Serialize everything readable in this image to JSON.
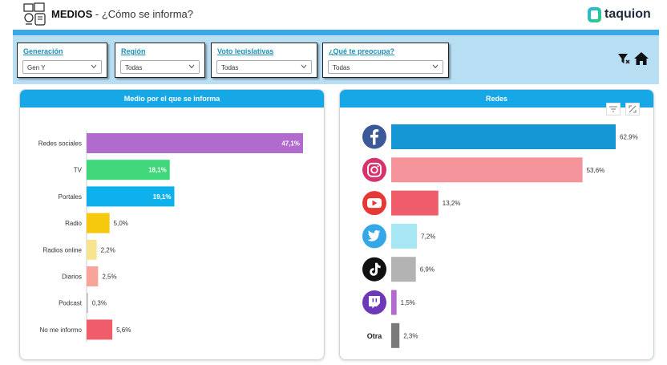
{
  "header": {
    "title_strong": "MEDIOS",
    "title_rest": " - ¿Cómo se informa?",
    "logo_text": "taquion",
    "app_icon": "media-devices-icon"
  },
  "filters": [
    {
      "label": "Generación",
      "value": "Gen Y"
    },
    {
      "label": "Región",
      "value": "Todas"
    },
    {
      "label": "Voto legislativas",
      "value": "Todas"
    },
    {
      "label": "¿Qué te preocupa?",
      "value": "Todas"
    }
  ],
  "toolbar": {
    "icons": [
      "clear-filter-icon",
      "home-icon"
    ]
  },
  "left_chart": {
    "title": "Medio por el que se informa",
    "chart_data": {
      "type": "bar",
      "orientation": "horizontal",
      "categories": [
        "Redes sociales",
        "TV",
        "Portales",
        "Radio",
        "Radios online",
        "Diarios",
        "Podcast",
        "No me informo"
      ],
      "values": [
        47.1,
        18.1,
        19.1,
        5.0,
        2.2,
        2.5,
        0.3,
        5.6
      ],
      "value_labels": [
        "47,1%",
        "18,1%",
        "19,1%",
        "5,0%",
        "2,2%",
        "2,5%",
        "0,3%",
        "5,6%"
      ],
      "colors": [
        "#b16bcc",
        "#3fd77a",
        "#0fb1ec",
        "#f6c90e",
        "#f8e38f",
        "#f7a59b",
        "#bbbbbb",
        "#ef5d6a"
      ],
      "xlim": [
        0,
        47.1
      ]
    }
  },
  "right_chart": {
    "title": "Redes",
    "chart_data": {
      "type": "bar",
      "orientation": "horizontal",
      "categories": [
        "Facebook",
        "Instagram",
        "YouTube",
        "Twitter",
        "TikTok",
        "Twitch",
        "Otra"
      ],
      "category_icons": [
        "facebook-icon",
        "instagram-icon",
        "youtube-icon",
        "twitter-icon",
        "tiktok-icon",
        "twitch-icon",
        ""
      ],
      "category_text": [
        "",
        "",
        "",
        "",
        "",
        "",
        "Otra"
      ],
      "values": [
        62.9,
        53.6,
        13.2,
        7.2,
        6.9,
        1.5,
        2.3
      ],
      "value_labels": [
        "62,9%",
        "53,6%",
        "13,2%",
        "7,2%",
        "6,9%",
        "1,5%",
        "2,3%"
      ],
      "colors": [
        "#1597d6",
        "#f5939a",
        "#ef5d6a",
        "#a7e7f3",
        "#b3b3b3",
        "#b16bcc",
        "#7a7a7a"
      ],
      "xlim": [
        0,
        62.9
      ]
    },
    "header_icons": [
      "filter-lines-icon",
      "expand-icon"
    ]
  }
}
